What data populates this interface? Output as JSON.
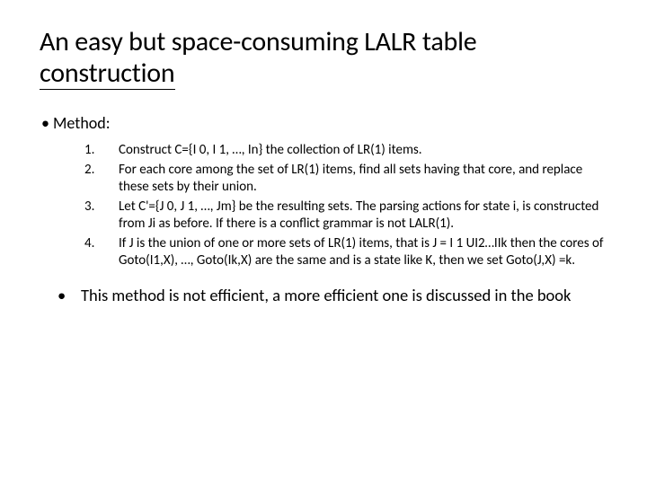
{
  "slide": {
    "title_line1": "An easy but space-consuming LALR table",
    "title_line2": "construction",
    "method_label": "Method:",
    "steps": {
      "n1": "1.",
      "t1": "Construct C={I 0, I 1, …, In} the collection of LR(1) items.",
      "n2": "2.",
      "t2": "For each core among the set of LR(1) items, find all sets having that core, and replace these sets by their union.",
      "n3": "3.",
      "t3": "Let C'={J 0, J 1, …, Jm} be the resulting sets. The parsing actions for state i, is constructed from Ji as before. If there is a conflict grammar is not LALR(1).",
      "n4": "4.",
      "t4": "If J is the union of one or more sets of LR(1) items, that is J = I 1 UI2…IIk then the cores of Goto(I1,X), …, Goto(Ik,X) are the same and is a state like K, then we set Goto(J,X) =k."
    },
    "closing_bullet": "•",
    "closing": "This method is not efficient, a more efficient one is discussed in the book"
  }
}
